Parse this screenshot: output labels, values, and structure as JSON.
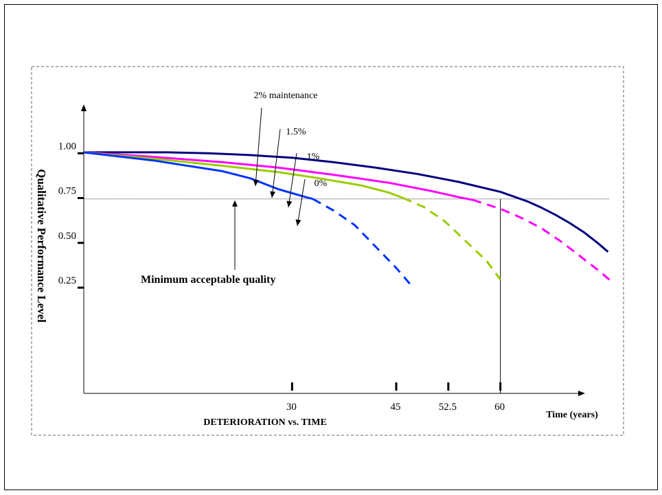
{
  "chart_data": {
    "type": "line",
    "title": "DETERIORATION vs. TIME",
    "xlabel": "Time (years)",
    "ylabel": "Qualitative Performance Level",
    "xlim": [
      0,
      72
    ],
    "ylim": [
      -0.34,
      1.25
    ],
    "x_ticks": [
      {
        "value": 30,
        "label": "30"
      },
      {
        "value": 45,
        "label": "45"
      },
      {
        "value": 52.5,
        "label": "52.5"
      },
      {
        "value": 60,
        "label": "60"
      }
    ],
    "y_ticks": [
      {
        "value": 1.0,
        "label": "1.00"
      },
      {
        "value": 0.75,
        "label": "0.75"
      },
      {
        "value": 0.5,
        "label": "0.50"
      },
      {
        "value": 0.25,
        "label": "0.25"
      }
    ],
    "threshold": {
      "value": 0.745,
      "label": "Minimum acceptable quality"
    },
    "series": [
      {
        "name": "2% maintenance",
        "color": "#000080",
        "solid": [
          [
            0,
            1.005
          ],
          [
            6,
            1.005
          ],
          [
            12,
            1.005
          ],
          [
            18,
            1.0
          ],
          [
            24,
            0.99
          ],
          [
            30,
            0.975
          ],
          [
            36,
            0.95
          ],
          [
            42,
            0.92
          ],
          [
            48,
            0.885
          ],
          [
            54,
            0.84
          ],
          [
            60,
            0.785
          ],
          [
            64,
            0.73
          ],
          [
            66,
            0.695
          ],
          [
            68,
            0.655
          ],
          [
            70,
            0.61
          ],
          [
            72,
            0.56
          ],
          [
            74,
            0.5
          ],
          [
            75.5,
            0.45
          ]
        ],
        "dashed": []
      },
      {
        "name": "1.5%",
        "color": "#ff00ff",
        "solid": [
          [
            0,
            1.005
          ],
          [
            10,
            0.98
          ],
          [
            20,
            0.95
          ],
          [
            28,
            0.92
          ],
          [
            36,
            0.88
          ],
          [
            44,
            0.835
          ],
          [
            50,
            0.79
          ],
          [
            54,
            0.755
          ],
          [
            56,
            0.74
          ]
        ],
        "dashed": [
          [
            56,
            0.74
          ],
          [
            60,
            0.69
          ],
          [
            63,
            0.64
          ],
          [
            66,
            0.58
          ],
          [
            69,
            0.5
          ],
          [
            72,
            0.41
          ],
          [
            74,
            0.35
          ],
          [
            76,
            0.285
          ]
        ]
      },
      {
        "name": "1%",
        "color": "#99cc00",
        "solid": [
          [
            0,
            1.005
          ],
          [
            10,
            0.97
          ],
          [
            20,
            0.93
          ],
          [
            28,
            0.895
          ],
          [
            34,
            0.86
          ],
          [
            40,
            0.82
          ],
          [
            44,
            0.78
          ],
          [
            46,
            0.75
          ]
        ],
        "dashed": [
          [
            46,
            0.75
          ],
          [
            49,
            0.7
          ],
          [
            52,
            0.62
          ],
          [
            55,
            0.51
          ],
          [
            58,
            0.4
          ],
          [
            60,
            0.295
          ]
        ]
      },
      {
        "name": "0%",
        "color": "#0033ff",
        "solid": [
          [
            0,
            1.005
          ],
          [
            10,
            0.96
          ],
          [
            20,
            0.9
          ],
          [
            24,
            0.86
          ],
          [
            28,
            0.8
          ],
          [
            32,
            0.755
          ],
          [
            33,
            0.745
          ]
        ],
        "dashed": [
          [
            33,
            0.745
          ],
          [
            36,
            0.68
          ],
          [
            39,
            0.6
          ],
          [
            42,
            0.48
          ],
          [
            45,
            0.36
          ],
          [
            47,
            0.27
          ]
        ]
      }
    ],
    "annotations": [
      {
        "text": "2% maintenance",
        "series": "2% maintenance"
      },
      {
        "text": "1.5%",
        "series": "1.5%"
      },
      {
        "text": "1%",
        "series": "1%"
      },
      {
        "text": "0%",
        "series": "0%"
      }
    ],
    "grid": false,
    "legend": "none"
  }
}
